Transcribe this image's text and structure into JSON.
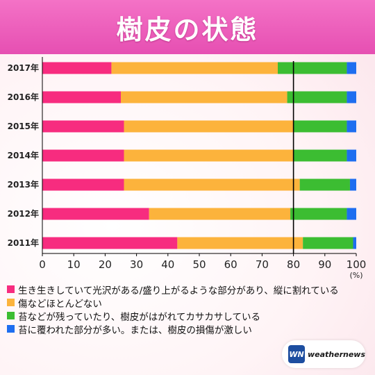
{
  "title": "樹皮の状態",
  "colors": {
    "banner": "#e64fb2",
    "glossy": "#f72c7f",
    "fine": "#fcb33c",
    "moss_dry": "#3cbd32",
    "heavy_moss": "#1e6ef0",
    "refline": "#000000"
  },
  "chart_data": {
    "type": "bar",
    "orientation": "horizontal",
    "stacked": true,
    "categories": [
      "2017年",
      "2016年",
      "2015年",
      "2014年",
      "2013年",
      "2012年",
      "2011年"
    ],
    "series": [
      {
        "name": "生き生きしていて光沢がある/盛り上がるような部分があり、縦に割れている",
        "color": "#f72c7f",
        "values": [
          22,
          25,
          26,
          26,
          26,
          34,
          43
        ]
      },
      {
        "name": "傷などほとんどない",
        "color": "#fcb33c",
        "values": [
          53,
          53,
          54,
          54,
          56,
          45,
          40
        ]
      },
      {
        "name": "苔などが残っていたり、樹皮がはがれてカサカサしている",
        "color": "#3cbd32",
        "values": [
          22,
          19,
          17,
          17,
          16,
          18,
          16
        ]
      },
      {
        "name": "苔に覆われた部分が多い。または、樹皮の損傷が激しい",
        "color": "#1e6ef0",
        "values": [
          3,
          3,
          3,
          3,
          2,
          3,
          1
        ]
      }
    ],
    "xlim": [
      0,
      100
    ],
    "xticks": [
      "0",
      "10",
      "20",
      "30",
      "40",
      "50",
      "60",
      "70",
      "80",
      "90",
      "100"
    ],
    "unit": "(%)",
    "reference_line": 80,
    "legend_position": "bottom",
    "grid": false
  },
  "logo": {
    "mark": "WN",
    "text": "weathernews"
  }
}
